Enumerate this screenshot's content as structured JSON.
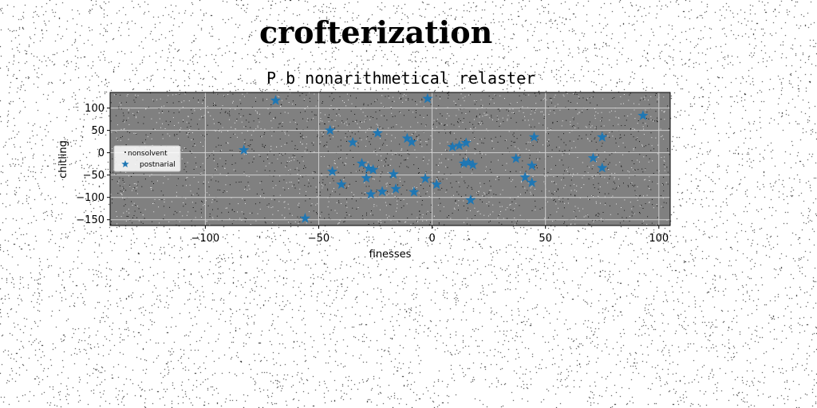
{
  "page": {
    "heading": "crofterization"
  },
  "chart_data": {
    "type": "scatter",
    "title": "P b nonarithmetical relaster",
    "xlabel": "finesses",
    "ylabel": "chitling",
    "xlim": [
      -142,
      105
    ],
    "ylim": [
      -163,
      135
    ],
    "xticks": [
      -100,
      -50,
      0,
      50,
      100
    ],
    "yticks": [
      -150,
      -100,
      -50,
      0,
      50,
      100
    ],
    "xtick_labels": [
      "−100",
      "−50",
      "0",
      "50",
      "100"
    ],
    "ytick_labels": [
      "−150",
      "−100",
      "−50",
      "0",
      "50",
      "100"
    ],
    "grid": true,
    "plot_background": "#808080",
    "legend_placement": "center-left",
    "series": [
      {
        "name": "nonsolvent",
        "marker": "point",
        "color": "#1a1a1a",
        "points": []
      },
      {
        "name": "postnarial",
        "marker": "star",
        "color": "#1f77b4",
        "points": [
          [
            -69,
            117
          ],
          [
            -2,
            121
          ],
          [
            93,
            83
          ],
          [
            -83,
            6
          ],
          [
            -45,
            50
          ],
          [
            -35,
            23
          ],
          [
            -24,
            44
          ],
          [
            -11,
            32
          ],
          [
            -9,
            24
          ],
          [
            9,
            13
          ],
          [
            12,
            16
          ],
          [
            15,
            22
          ],
          [
            45,
            35
          ],
          [
            75,
            35
          ],
          [
            -44,
            -42
          ],
          [
            -40,
            -71
          ],
          [
            -31,
            -24
          ],
          [
            -28,
            -35
          ],
          [
            -26,
            -38
          ],
          [
            -29,
            -57
          ],
          [
            -27,
            -93
          ],
          [
            -22,
            -87
          ],
          [
            -17,
            -48
          ],
          [
            -16,
            -81
          ],
          [
            -8,
            -88
          ],
          [
            -3,
            -58
          ],
          [
            2,
            -71
          ],
          [
            14,
            -24
          ],
          [
            16,
            -22
          ],
          [
            18,
            -27
          ],
          [
            37,
            -13
          ],
          [
            41,
            -55
          ],
          [
            44,
            -29
          ],
          [
            44,
            -67
          ],
          [
            71,
            -12
          ],
          [
            75,
            -34
          ],
          [
            17,
            -106
          ],
          [
            -56,
            -147
          ]
        ]
      }
    ]
  }
}
